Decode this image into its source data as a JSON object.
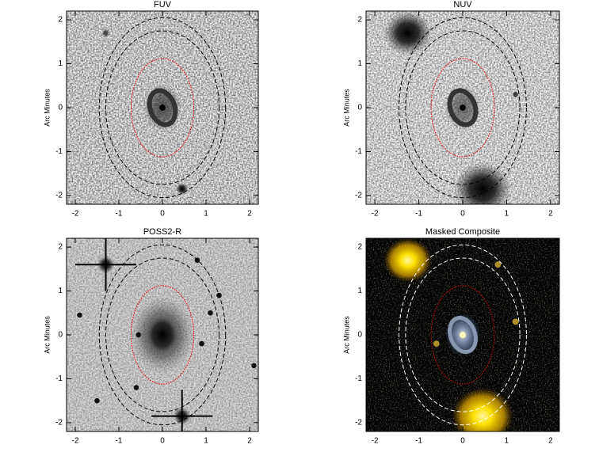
{
  "chart_data": [
    {
      "type": "image",
      "title": "FUV",
      "ylabel": "Arc Minutes",
      "theme": "fuv",
      "xlim": [
        -2.2,
        2.2
      ],
      "ylim": [
        -2.2,
        2.2
      ],
      "xticks": [
        -2,
        -1,
        0,
        1,
        2
      ],
      "yticks": [
        -2,
        -1,
        0,
        1,
        2
      ]
    },
    {
      "type": "image",
      "title": "NUV",
      "ylabel": "Arc Minutes",
      "theme": "nuv",
      "xlim": [
        -2.2,
        2.2
      ],
      "ylim": [
        -2.2,
        2.2
      ],
      "xticks": [
        -2,
        -1,
        0,
        1,
        2
      ],
      "yticks": [
        -2,
        -1,
        0,
        1,
        2
      ]
    },
    {
      "type": "image",
      "title": "POSS2-R",
      "ylabel": "Arc Minutes",
      "theme": "optical",
      "xlim": [
        -2.2,
        2.2
      ],
      "ylim": [
        -2.2,
        2.2
      ],
      "xticks": [
        -2,
        -1,
        0,
        1,
        2
      ],
      "yticks": [
        -2,
        -1,
        0,
        1,
        2
      ]
    },
    {
      "type": "image",
      "title": "Masked Composite",
      "ylabel": "Arc Minutes",
      "theme": "composite",
      "xlim": [
        -2.2,
        2.2
      ],
      "ylim": [
        -2.2,
        2.2
      ],
      "xticks": [
        -2,
        -1,
        0,
        1,
        2
      ],
      "yticks": [
        -2,
        -1,
        0,
        1,
        2
      ]
    }
  ]
}
